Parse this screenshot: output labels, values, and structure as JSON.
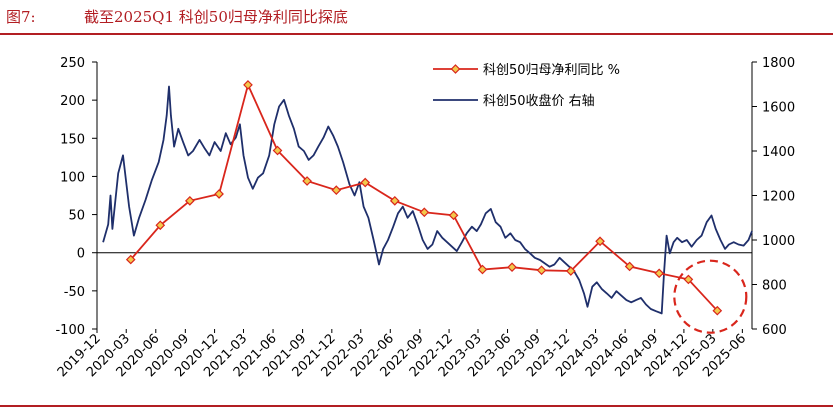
{
  "header": {
    "figure_label": "图7:",
    "title": "截至2025Q1 科创50归母净利同比探底"
  },
  "colors": {
    "title": "#b21e23",
    "profit_series": "#d9261c",
    "index_series": "#1f2f6b",
    "highlight_circle": "#d9261c"
  },
  "chart_data": {
    "type": "line",
    "legend_placement": "top-center",
    "grid": false,
    "x_ticks": [
      "2019-12",
      "2020-03",
      "2020-06",
      "2020-09",
      "2020-12",
      "2021-03",
      "2021-06",
      "2021-09",
      "2021-12",
      "2022-03",
      "2022-06",
      "2022-09",
      "2022-12",
      "2023-03",
      "2023-06",
      "2023-09",
      "2023-12",
      "2024-03",
      "2024-06",
      "2024-09",
      "2024-12",
      "2025-03",
      "2025-06"
    ],
    "y_left": {
      "min": -100,
      "max": 250,
      "ticks": [
        -100,
        -50,
        0,
        50,
        100,
        150,
        200,
        250
      ]
    },
    "y_right": {
      "min": 600,
      "max": 1800,
      "ticks": [
        600,
        800,
        1000,
        1200,
        1400,
        1600,
        1800
      ]
    },
    "series": [
      {
        "name": "科创50归母净利同比 %",
        "axis": "left",
        "marker": "diamond",
        "points": [
          [
            "2020-03",
            -9
          ],
          [
            "2020-06",
            36
          ],
          [
            "2020-09",
            68
          ],
          [
            "2020-12",
            77
          ],
          [
            "2021-03",
            220
          ],
          [
            "2021-06",
            134
          ],
          [
            "2021-09",
            94
          ],
          [
            "2021-12",
            82
          ],
          [
            "2022-03",
            92
          ],
          [
            "2022-06",
            68
          ],
          [
            "2022-09",
            53
          ],
          [
            "2022-12",
            49
          ],
          [
            "2023-03",
            -22
          ],
          [
            "2023-06",
            -19
          ],
          [
            "2023-09",
            -23
          ],
          [
            "2023-12",
            -24
          ],
          [
            "2024-03",
            15
          ],
          [
            "2024-06",
            -18
          ],
          [
            "2024-09",
            -27
          ],
          [
            "2024-12",
            -35
          ],
          [
            "2025-03",
            -76
          ]
        ]
      },
      {
        "name": "科创50收盘价 右轴",
        "axis": "right",
        "points": [
          [
            "2019-12-20",
            990
          ],
          [
            "2020-01-05",
            1070
          ],
          [
            "2020-01-12",
            1200
          ],
          [
            "2020-01-18",
            1050
          ],
          [
            "2020-02-05",
            1300
          ],
          [
            "2020-02-20",
            1380
          ],
          [
            "2020-03-10",
            1150
          ],
          [
            "2020-03-25",
            1020
          ],
          [
            "2020-04-10",
            1100
          ],
          [
            "2020-04-30",
            1180
          ],
          [
            "2020-05-20",
            1270
          ],
          [
            "2020-06-10",
            1350
          ],
          [
            "2020-06-25",
            1450
          ],
          [
            "2020-07-05",
            1560
          ],
          [
            "2020-07-12",
            1690
          ],
          [
            "2020-07-18",
            1560
          ],
          [
            "2020-07-28",
            1420
          ],
          [
            "2020-08-10",
            1500
          ],
          [
            "2020-08-25",
            1440
          ],
          [
            "2020-09-10",
            1380
          ],
          [
            "2020-09-25",
            1400
          ],
          [
            "2020-10-15",
            1450
          ],
          [
            "2020-11-01",
            1410
          ],
          [
            "2020-11-15",
            1380
          ],
          [
            "2020-12-01",
            1440
          ],
          [
            "2020-12-20",
            1400
          ],
          [
            "2021-01-05",
            1480
          ],
          [
            "2021-01-20",
            1430
          ],
          [
            "2021-02-05",
            1460
          ],
          [
            "2021-02-18",
            1520
          ],
          [
            "2021-03-01",
            1380
          ],
          [
            "2021-03-15",
            1280
          ],
          [
            "2021-03-30",
            1230
          ],
          [
            "2021-04-15",
            1280
          ],
          [
            "2021-05-01",
            1300
          ],
          [
            "2021-05-20",
            1380
          ],
          [
            "2021-06-05",
            1520
          ],
          [
            "2021-06-20",
            1600
          ],
          [
            "2021-07-05",
            1630
          ],
          [
            "2021-07-20",
            1560
          ],
          [
            "2021-08-05",
            1500
          ],
          [
            "2021-08-20",
            1420
          ],
          [
            "2021-09-05",
            1400
          ],
          [
            "2021-09-20",
            1360
          ],
          [
            "2021-10-05",
            1380
          ],
          [
            "2021-10-20",
            1420
          ],
          [
            "2021-11-05",
            1460
          ],
          [
            "2021-11-20",
            1510
          ],
          [
            "2021-12-05",
            1470
          ],
          [
            "2021-12-20",
            1420
          ],
          [
            "2022-01-05",
            1350
          ],
          [
            "2022-01-25",
            1250
          ],
          [
            "2022-02-10",
            1200
          ],
          [
            "2022-02-25",
            1260
          ],
          [
            "2022-03-10",
            1150
          ],
          [
            "2022-03-25",
            1100
          ],
          [
            "2022-04-10",
            1000
          ],
          [
            "2022-04-27",
            890
          ],
          [
            "2022-05-10",
            960
          ],
          [
            "2022-05-25",
            1000
          ],
          [
            "2022-06-10",
            1060
          ],
          [
            "2022-06-25",
            1120
          ],
          [
            "2022-07-10",
            1150
          ],
          [
            "2022-07-25",
            1100
          ],
          [
            "2022-08-10",
            1130
          ],
          [
            "2022-08-25",
            1070
          ],
          [
            "2022-09-10",
            1000
          ],
          [
            "2022-09-25",
            960
          ],
          [
            "2022-10-10",
            980
          ],
          [
            "2022-10-25",
            1040
          ],
          [
            "2022-11-10",
            1010
          ],
          [
            "2022-11-25",
            990
          ],
          [
            "2022-12-10",
            970
          ],
          [
            "2022-12-25",
            950
          ],
          [
            "2023-01-10",
            990
          ],
          [
            "2023-01-25",
            1030
          ],
          [
            "2023-02-10",
            1060
          ],
          [
            "2023-02-25",
            1040
          ],
          [
            "2023-03-10",
            1070
          ],
          [
            "2023-03-25",
            1120
          ],
          [
            "2023-04-10",
            1140
          ],
          [
            "2023-04-25",
            1080
          ],
          [
            "2023-05-10",
            1060
          ],
          [
            "2023-05-25",
            1010
          ],
          [
            "2023-06-10",
            1030
          ],
          [
            "2023-06-25",
            1000
          ],
          [
            "2023-07-10",
            990
          ],
          [
            "2023-07-25",
            960
          ],
          [
            "2023-08-10",
            940
          ],
          [
            "2023-08-25",
            920
          ],
          [
            "2023-09-10",
            910
          ],
          [
            "2023-09-25",
            895
          ],
          [
            "2023-10-10",
            880
          ],
          [
            "2023-10-25",
            890
          ],
          [
            "2023-11-10",
            920
          ],
          [
            "2023-11-25",
            900
          ],
          [
            "2023-12-10",
            880
          ],
          [
            "2023-12-25",
            860
          ],
          [
            "2024-01-10",
            820
          ],
          [
            "2024-01-25",
            760
          ],
          [
            "2024-02-05",
            700
          ],
          [
            "2024-02-20",
            790
          ],
          [
            "2024-03-05",
            810
          ],
          [
            "2024-03-20",
            780
          ],
          [
            "2024-04-05",
            760
          ],
          [
            "2024-04-20",
            740
          ],
          [
            "2024-05-05",
            770
          ],
          [
            "2024-05-20",
            750
          ],
          [
            "2024-06-05",
            730
          ],
          [
            "2024-06-20",
            720
          ],
          [
            "2024-07-05",
            730
          ],
          [
            "2024-07-20",
            740
          ],
          [
            "2024-08-05",
            710
          ],
          [
            "2024-08-20",
            690
          ],
          [
            "2024-09-05",
            680
          ],
          [
            "2024-09-23",
            670
          ],
          [
            "2024-09-30",
            850
          ],
          [
            "2024-10-08",
            1020
          ],
          [
            "2024-10-18",
            940
          ],
          [
            "2024-10-30",
            990
          ],
          [
            "2024-11-10",
            1010
          ],
          [
            "2024-11-25",
            990
          ],
          [
            "2024-12-10",
            1000
          ],
          [
            "2024-12-25",
            970
          ],
          [
            "2025-01-10",
            1000
          ],
          [
            "2025-01-25",
            1020
          ],
          [
            "2025-02-10",
            1080
          ],
          [
            "2025-02-25",
            1110
          ],
          [
            "2025-03-10",
            1050
          ],
          [
            "2025-03-25",
            1000
          ],
          [
            "2025-04-08",
            960
          ],
          [
            "2025-04-20",
            980
          ],
          [
            "2025-05-05",
            990
          ],
          [
            "2025-05-20",
            980
          ],
          [
            "2025-06-05",
            975
          ],
          [
            "2025-06-20",
            1000
          ],
          [
            "2025-07-01",
            1040
          ]
        ]
      }
    ],
    "annotation": {
      "type": "dashed-circle",
      "around": [
        "2025-03",
        -76
      ]
    }
  }
}
